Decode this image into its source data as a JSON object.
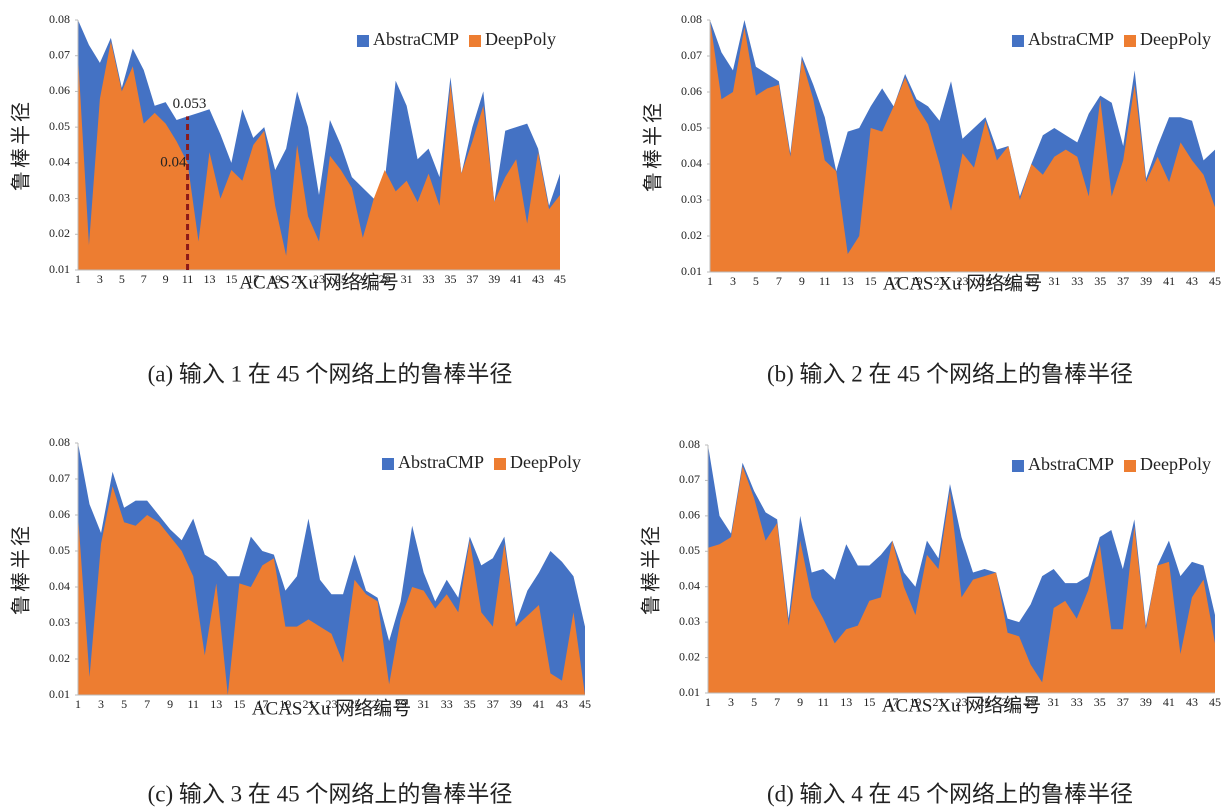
{
  "chart_data": [
    {
      "type": "area",
      "caption": "(a) 输入 1 在 45 个网络上的鲁棒半径",
      "y_label": "鲁棒半径",
      "x_label": "ACAS Xu 网络编号",
      "categories": [
        1,
        null,
        3,
        null,
        5,
        null,
        7,
        null,
        9,
        null,
        11,
        null,
        13,
        null,
        15,
        null,
        17,
        null,
        19,
        null,
        21,
        null,
        23,
        null,
        25,
        null,
        27,
        null,
        29,
        null,
        31,
        null,
        33,
        null,
        35,
        null,
        37,
        null,
        39,
        null,
        41,
        null,
        43,
        null,
        45
      ],
      "series": [
        {
          "name": "AbstraCMP",
          "color": "#4472c4",
          "values": [
            0.08,
            0.073,
            0.068,
            0.075,
            0.061,
            0.072,
            0.066,
            0.056,
            0.057,
            0.052,
            0.053,
            0.054,
            0.055,
            0.048,
            0.04,
            0.055,
            0.047,
            0.05,
            0.038,
            0.044,
            0.06,
            0.05,
            0.031,
            0.052,
            0.045,
            0.036,
            0.033,
            0.03,
            0.035,
            0.063,
            0.056,
            0.041,
            0.044,
            0.036,
            0.064,
            0.037,
            0.05,
            0.06,
            0.029,
            0.049,
            0.05,
            0.051,
            0.044,
            0.028,
            0.037
          ]
        },
        {
          "name": "DeepPoly",
          "color": "#ed7d31",
          "values": [
            0.07,
            0.017,
            0.058,
            0.074,
            0.06,
            0.067,
            0.051,
            0.054,
            0.051,
            0.046,
            0.04,
            0.018,
            0.043,
            0.03,
            0.038,
            0.035,
            0.045,
            0.049,
            0.028,
            0.014,
            0.045,
            0.025,
            0.018,
            0.042,
            0.038,
            0.033,
            0.019,
            0.03,
            0.038,
            0.032,
            0.035,
            0.029,
            0.037,
            0.028,
            0.062,
            0.037,
            0.046,
            0.056,
            0.029,
            0.036,
            0.041,
            0.023,
            0.043,
            0.027,
            0.031
          ]
        }
      ],
      "ylim": [
        0.01,
        0.08
      ],
      "yticks": [
        0.01,
        0.02,
        0.03,
        0.04,
        0.05,
        0.06,
        0.07,
        0.08
      ],
      "legend": "top-right",
      "annotations": [
        {
          "label": "0.053",
          "x": 11,
          "y": 0.053
        },
        {
          "label": "0.04",
          "x": 11,
          "y": 0.04
        }
      ]
    },
    {
      "type": "area",
      "caption": "(b) 输入 2 在 45 个网络上的鲁棒半径",
      "y_label": "鲁棒半径",
      "x_label": "ACAS Xu 网络编号",
      "categories": [
        1,
        null,
        3,
        null,
        5,
        null,
        7,
        null,
        9,
        null,
        11,
        null,
        13,
        null,
        15,
        null,
        17,
        null,
        19,
        null,
        21,
        null,
        23,
        null,
        25,
        null,
        27,
        null,
        29,
        null,
        31,
        null,
        33,
        null,
        35,
        null,
        37,
        null,
        39,
        null,
        41,
        null,
        43,
        null,
        45
      ],
      "series": [
        {
          "name": "AbstraCMP",
          "color": "#4472c4",
          "values": [
            0.08,
            0.071,
            0.066,
            0.08,
            0.067,
            0.065,
            0.063,
            0.043,
            0.07,
            0.062,
            0.053,
            0.038,
            0.049,
            0.05,
            0.056,
            0.061,
            0.056,
            0.065,
            0.058,
            0.056,
            0.052,
            0.063,
            0.047,
            0.05,
            0.053,
            0.044,
            0.045,
            0.031,
            0.04,
            0.048,
            0.05,
            0.048,
            0.046,
            0.054,
            0.059,
            0.057,
            0.045,
            0.066,
            0.036,
            0.045,
            0.053,
            0.053,
            0.052,
            0.041,
            0.044
          ]
        },
        {
          "name": "DeepPoly",
          "color": "#ed7d31",
          "values": [
            0.08,
            0.058,
            0.06,
            0.078,
            0.059,
            0.061,
            0.062,
            0.042,
            0.069,
            0.058,
            0.041,
            0.038,
            0.015,
            0.02,
            0.05,
            0.049,
            0.056,
            0.064,
            0.056,
            0.051,
            0.04,
            0.027,
            0.043,
            0.039,
            0.052,
            0.041,
            0.045,
            0.03,
            0.04,
            0.037,
            0.042,
            0.044,
            0.042,
            0.031,
            0.058,
            0.031,
            0.041,
            0.062,
            0.035,
            0.042,
            0.035,
            0.046,
            0.041,
            0.037,
            0.028
          ]
        }
      ],
      "ylim": [
        0.01,
        0.08
      ],
      "yticks": [
        0.01,
        0.02,
        0.03,
        0.04,
        0.05,
        0.06,
        0.07,
        0.08
      ],
      "legend": "top-right"
    },
    {
      "type": "area",
      "caption": "(c) 输入 3 在 45 个网络上的鲁棒半径",
      "y_label": "鲁棒半径",
      "x_label": "ACAS Xu 网络编号",
      "categories": [
        1,
        null,
        3,
        null,
        5,
        null,
        7,
        null,
        9,
        null,
        11,
        null,
        13,
        null,
        15,
        null,
        17,
        null,
        19,
        null,
        21,
        null,
        23,
        null,
        25,
        null,
        27,
        null,
        29,
        null,
        31,
        null,
        33,
        null,
        35,
        null,
        37,
        null,
        39,
        null,
        41,
        null,
        43,
        null,
        45
      ],
      "series": [
        {
          "name": "AbstraCMP",
          "color": "#4472c4",
          "values": [
            0.08,
            0.063,
            0.055,
            0.072,
            0.062,
            0.064,
            0.064,
            0.06,
            0.056,
            0.053,
            0.059,
            0.049,
            0.047,
            0.043,
            0.043,
            0.054,
            0.05,
            0.049,
            0.039,
            0.043,
            0.059,
            0.042,
            0.038,
            0.038,
            0.049,
            0.039,
            0.037,
            0.025,
            0.036,
            0.057,
            0.044,
            0.036,
            0.042,
            0.037,
            0.054,
            0.046,
            0.048,
            0.054,
            0.03,
            0.039,
            0.044,
            0.05,
            0.047,
            0.043,
            0.029
          ]
        },
        {
          "name": "DeepPoly",
          "color": "#ed7d31",
          "values": [
            0.06,
            0.015,
            0.052,
            0.068,
            0.058,
            0.057,
            0.06,
            0.058,
            0.054,
            0.05,
            0.043,
            0.021,
            0.041,
            0.01,
            0.041,
            0.04,
            0.046,
            0.048,
            0.029,
            0.029,
            0.031,
            0.029,
            0.027,
            0.019,
            0.042,
            0.038,
            0.036,
            0.013,
            0.031,
            0.04,
            0.039,
            0.034,
            0.038,
            0.033,
            0.053,
            0.033,
            0.029,
            0.052,
            0.029,
            0.032,
            0.035,
            0.016,
            0.014,
            0.033,
            0.01
          ]
        }
      ],
      "ylim": [
        0.01,
        0.08
      ],
      "yticks": [
        0.01,
        0.02,
        0.03,
        0.04,
        0.05,
        0.06,
        0.07,
        0.08
      ],
      "legend": "top-right"
    },
    {
      "type": "area",
      "caption": "(d) 输入 4 在 45 个网络上的鲁棒半径",
      "y_label": "鲁棒半径",
      "x_label": "ACAS Xu 网络编号",
      "categories": [
        1,
        null,
        3,
        null,
        5,
        null,
        7,
        null,
        9,
        null,
        11,
        null,
        13,
        null,
        15,
        null,
        17,
        null,
        19,
        null,
        21,
        null,
        23,
        null,
        25,
        null,
        27,
        null,
        29,
        null,
        31,
        null,
        33,
        null,
        35,
        null,
        37,
        null,
        39,
        null,
        41,
        null,
        43,
        null,
        45
      ],
      "series": [
        {
          "name": "AbstraCMP",
          "color": "#4472c4",
          "values": [
            0.08,
            0.06,
            0.055,
            0.075,
            0.067,
            0.061,
            0.059,
            0.031,
            0.06,
            0.044,
            0.045,
            0.042,
            0.052,
            0.046,
            0.046,
            0.049,
            0.053,
            0.044,
            0.04,
            0.053,
            0.048,
            0.069,
            0.054,
            0.044,
            0.045,
            0.044,
            0.031,
            0.03,
            0.035,
            0.043,
            0.045,
            0.041,
            0.041,
            0.043,
            0.054,
            0.056,
            0.045,
            0.059,
            0.029,
            0.046,
            0.053,
            0.043,
            0.047,
            0.046,
            0.032
          ]
        },
        {
          "name": "DeepPoly",
          "color": "#ed7d31",
          "values": [
            0.051,
            0.052,
            0.054,
            0.074,
            0.065,
            0.053,
            0.058,
            0.029,
            0.053,
            0.037,
            0.031,
            0.024,
            0.028,
            0.029,
            0.036,
            0.037,
            0.053,
            0.04,
            0.032,
            0.049,
            0.045,
            0.067,
            0.037,
            0.042,
            0.043,
            0.044,
            0.027,
            0.026,
            0.018,
            0.013,
            0.034,
            0.036,
            0.031,
            0.039,
            0.052,
            0.028,
            0.028,
            0.057,
            0.028,
            0.046,
            0.047,
            0.021,
            0.037,
            0.042,
            0.024
          ]
        }
      ],
      "ylim": [
        0.01,
        0.08
      ],
      "yticks": [
        0.01,
        0.02,
        0.03,
        0.04,
        0.05,
        0.06,
        0.07,
        0.08
      ],
      "legend": "top-right"
    }
  ]
}
